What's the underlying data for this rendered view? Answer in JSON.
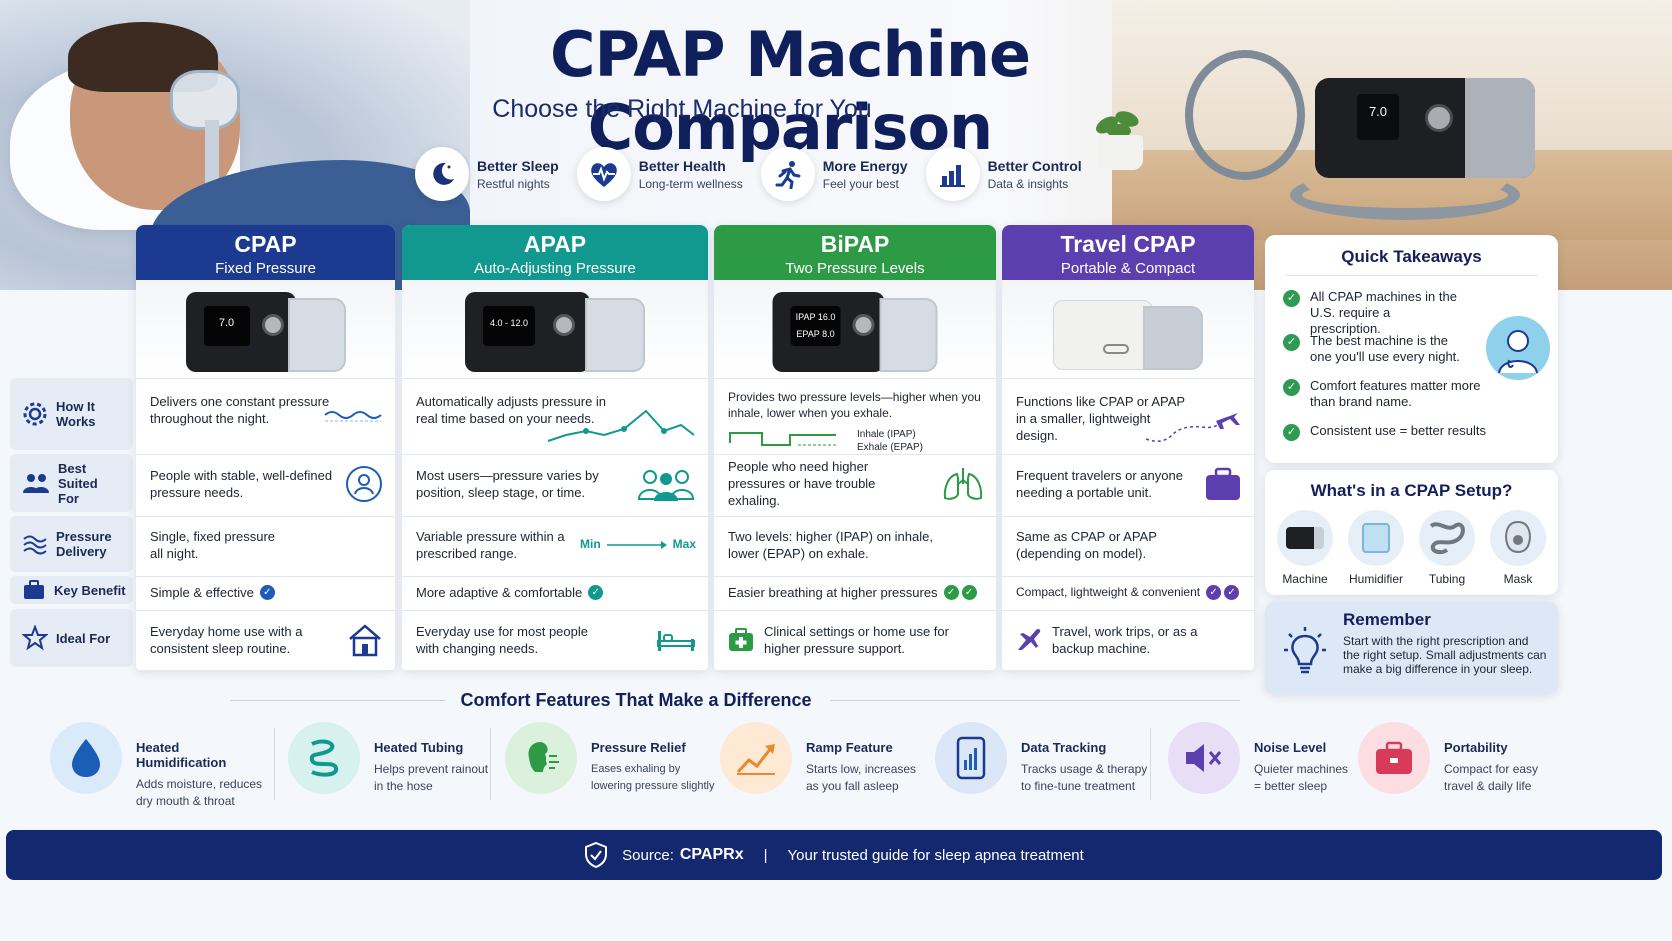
{
  "header": {
    "title": "CPAP Machine Comparison",
    "subtitle": "Choose the Right Machine for You",
    "hero_machine_display": "7.0"
  },
  "benefits": [
    {
      "icon": "moon-icon",
      "title": "Better Sleep",
      "desc": "Restful nights"
    },
    {
      "icon": "heart-pulse-icon",
      "title": "Better Health",
      "desc": "Long-term wellness"
    },
    {
      "icon": "runner-icon",
      "title": "More Energy",
      "desc": "Feel your best"
    },
    {
      "icon": "bar-chart-icon",
      "title": "Better Control",
      "desc": "Data & insights"
    }
  ],
  "row_labels": {
    "how": "How It Works",
    "best": "Best Suited For",
    "delivery": "Pressure Delivery",
    "benefit": "Key Benefit",
    "ideal": "Ideal For"
  },
  "columns": [
    {
      "name": "CPAP",
      "sub": "Fixed Pressure",
      "color": "#1c3a8f",
      "display": "7.0",
      "how": "Delivers one constant pressure throughout the night.",
      "best": "People with stable, well-defined pressure needs.",
      "delivery": "Single, fixed pressure all night.",
      "benefit": "Simple & effective",
      "ideal": "Everyday home use with a consistent sleep routine."
    },
    {
      "name": "APAP",
      "sub": "Auto-Adjusting Pressure",
      "color": "#12998f",
      "display": "4.0 - 12.0",
      "how": "Automatically adjusts pressure in real time based on your needs.",
      "best": "Most users—pressure varies by position, sleep stage, or time.",
      "delivery": "Variable pressure within a prescribed range.",
      "range_min": "Min",
      "range_max": "Max",
      "benefit": "More adaptive & comfortable",
      "ideal": "Everyday use for most people with changing needs."
    },
    {
      "name": "BiPAP",
      "sub": "Two Pressure Levels",
      "color": "#2d9a45",
      "display_top": "IPAP 16.0",
      "display_bottom": "EPAP 8.0",
      "how": "Provides two pressure levels—higher when you inhale, lower when you exhale.",
      "inhale": "Inhale (IPAP)",
      "exhale": "Exhale (EPAP)",
      "best": "People who need higher pressures or have trouble exhaling.",
      "delivery": "Two levels: higher (IPAP) on inhale, lower (EPAP) on exhale.",
      "benefit": "Easier breathing at higher pressures",
      "ideal": "Clinical settings or home use for higher pressure support."
    },
    {
      "name": "Travel CPAP",
      "sub": "Portable & Compact",
      "color": "#5b3fae",
      "how": "Functions like CPAP or APAP in a smaller, lightweight design.",
      "best": "Frequent travelers or anyone needing a portable unit.",
      "delivery": "Same as CPAP or APAP (depending on model).",
      "benefit": "Compact, lightweight & convenient",
      "ideal": "Travel, work trips, or as a backup machine."
    }
  ],
  "takeaways": {
    "title": "Quick Takeaways",
    "items": [
      "All CPAP machines in the U.S. require a prescription.",
      "The best machine is the one you'll use every night.",
      "Comfort features matter more than brand name.",
      "Consistent use = better results"
    ]
  },
  "setup": {
    "title": "What's in a CPAP Setup?",
    "items": [
      "Machine",
      "Humidifier",
      "Tubing",
      "Mask"
    ]
  },
  "remember": {
    "title": "Remember",
    "text": "Start with the right prescription and the right setup. Small adjustments can make a big difference in your sleep."
  },
  "comfort": {
    "title": "Comfort Features That Make a Difference",
    "items": [
      {
        "title": "Heated Humidification",
        "desc": "Adds moisture, reduces dry mouth & throat",
        "icon": "water-drop-icon",
        "color": "#dbeaf8"
      },
      {
        "title": "Heated Tubing",
        "desc": "Helps prevent rainout in the hose",
        "icon": "coiled-tube-icon",
        "color": "#d6f1ee"
      },
      {
        "title": "Pressure Relief",
        "desc": "Eases exhaling by lowering pressure slightly",
        "icon": "exhale-face-icon",
        "color": "#dcf1dd"
      },
      {
        "title": "Ramp Feature",
        "desc": "Starts low, increases as you fall asleep",
        "icon": "ramp-chart-icon",
        "color": "#fde9d4"
      },
      {
        "title": "Data Tracking",
        "desc": "Tracks usage & therapy to fine-tune treatment",
        "icon": "phone-chart-icon",
        "color": "#dbe6f6"
      },
      {
        "title": "Noise Level",
        "desc": "Quieter machines = better sleep",
        "icon": "mute-speaker-icon",
        "color": "#e8def5"
      },
      {
        "title": "Portability",
        "desc": "Compact for easy travel & daily life",
        "icon": "suitcase-icon",
        "color": "#fbdde2"
      }
    ]
  },
  "footer": {
    "source_label": "Source:",
    "source": "CPAPRx",
    "divider": "|",
    "tagline": "Your trusted guide for sleep apnea treatment"
  }
}
